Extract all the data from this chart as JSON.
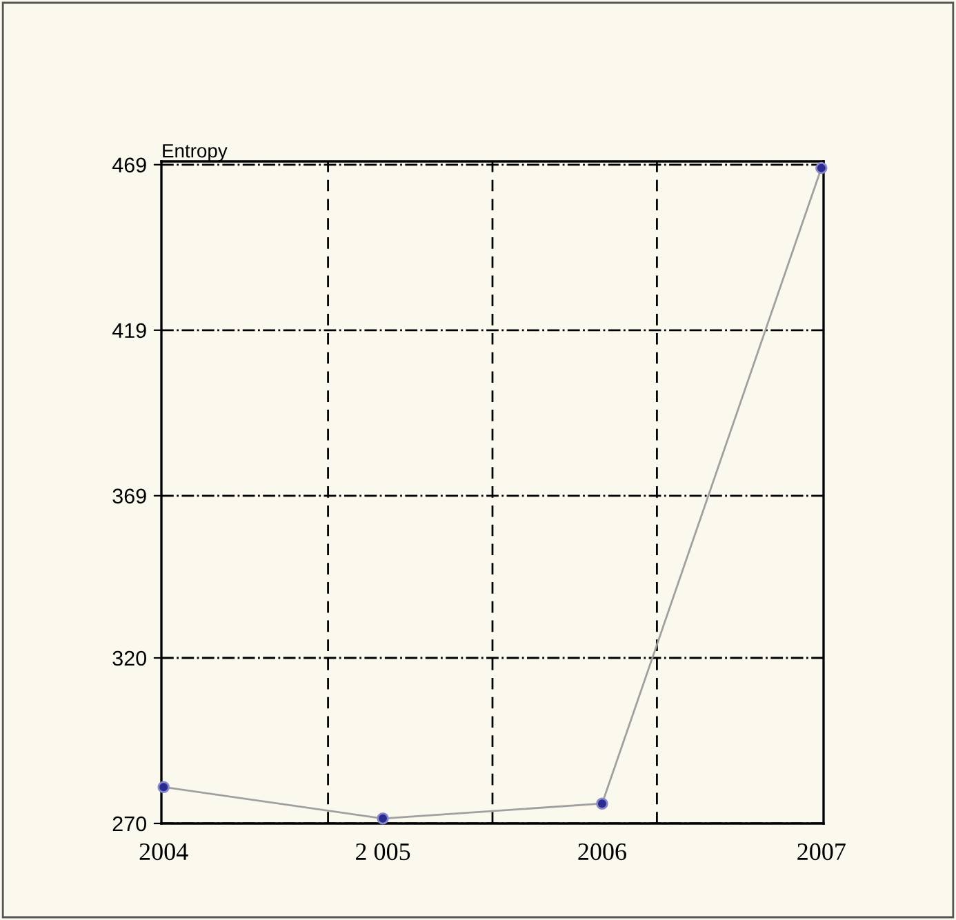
{
  "chart_data": {
    "type": "line",
    "ylabel": "Entropy",
    "x": [
      2004,
      2005,
      2006,
      2007
    ],
    "series": [
      {
        "color": "#a0a0a0",
        "values": [
          281,
          271.5,
          276,
          468
        ]
      }
    ],
    "marker": "circle",
    "xlim": [
      2003.99,
      2007.01
    ],
    "xticks": [
      {
        "value": 2004,
        "label": "2004"
      },
      {
        "value": 2004.75,
        "label": null
      },
      {
        "value": 2005,
        "label": "2 005"
      },
      {
        "value": 2005.5,
        "label": null
      },
      {
        "value": 2006,
        "label": "2006"
      },
      {
        "value": 2006.25,
        "label": null
      },
      {
        "value": 2007,
        "label": "2007"
      }
    ],
    "ylim": [
      270,
      470
    ],
    "yticks": [
      270,
      320,
      369,
      419,
      469
    ],
    "grid": true
  }
}
